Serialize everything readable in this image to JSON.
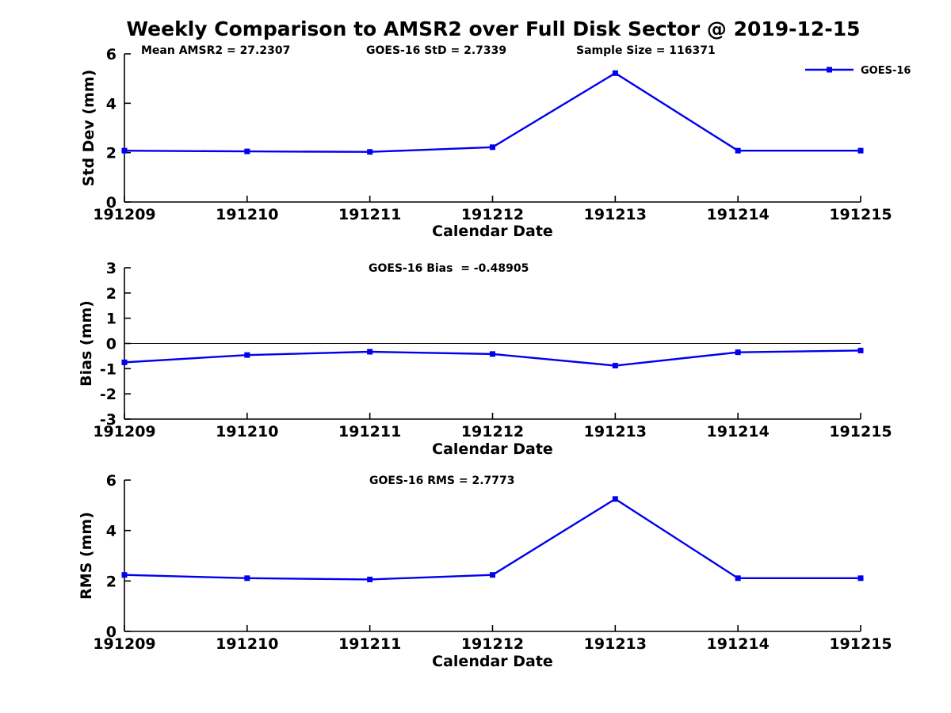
{
  "figure": {
    "title": "Weekly Comparison to AMSR2 over Full Disk Sector @ 2019-12-15",
    "background_color": "#ffffff",
    "text_color": "#000000",
    "line_color": "#0000ee"
  },
  "legend": {
    "position": "top-right",
    "entries": [
      {
        "label": "GOES-16",
        "color": "#0000ee",
        "marker": "filled-square"
      }
    ]
  },
  "chart_data": [
    {
      "id": "std-dev",
      "type": "line",
      "xlabel": "Calendar Date",
      "ylabel": "Std Dev (mm)",
      "categories": [
        "191209",
        "191210",
        "191211",
        "191212",
        "191213",
        "191214",
        "191215"
      ],
      "series": [
        {
          "name": "GOES-16",
          "values": [
            2.08,
            2.05,
            2.03,
            2.22,
            5.22,
            2.08,
            2.08
          ]
        }
      ],
      "ylim": [
        0,
        6
      ],
      "yticks": [
        0,
        2,
        4,
        6
      ],
      "grid": false,
      "zero_line": false,
      "show_legend": true,
      "annotations": [
        "Mean AMSR2 = 27.2307",
        "GOES-16 StD = 2.7339",
        "Sample Size = 116371"
      ]
    },
    {
      "id": "bias",
      "type": "line",
      "xlabel": "Calendar Date",
      "ylabel": "Bias (mm)",
      "categories": [
        "191209",
        "191210",
        "191211",
        "191212",
        "191213",
        "191214",
        "191215"
      ],
      "series": [
        {
          "name": "GOES-16",
          "values": [
            -0.75,
            -0.46,
            -0.33,
            -0.42,
            -0.88,
            -0.35,
            -0.28
          ]
        }
      ],
      "ylim": [
        -3,
        3
      ],
      "yticks": [
        -3,
        -2,
        -1,
        0,
        1,
        2,
        3
      ],
      "grid": false,
      "zero_line": true,
      "show_legend": false,
      "annotations": [
        "GOES-16 Bias  = -0.48905"
      ]
    },
    {
      "id": "rms",
      "type": "line",
      "xlabel": "Calendar Date",
      "ylabel": "RMS (mm)",
      "categories": [
        "191209",
        "191210",
        "191211",
        "191212",
        "191213",
        "191214",
        "191215"
      ],
      "series": [
        {
          "name": "GOES-16",
          "values": [
            2.24,
            2.11,
            2.06,
            2.24,
            5.25,
            2.11,
            2.11
          ]
        }
      ],
      "ylim": [
        0,
        6
      ],
      "yticks": [
        0,
        2,
        4,
        6
      ],
      "grid": false,
      "zero_line": false,
      "show_legend": false,
      "annotations": [
        "GOES-16 RMS = 2.7773"
      ]
    }
  ]
}
